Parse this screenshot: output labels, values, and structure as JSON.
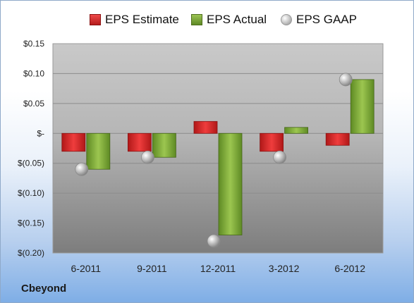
{
  "chart_data": {
    "type": "bar",
    "categories": [
      "6-2011",
      "9-2011",
      "12-2011",
      "3-2012",
      "6-2012"
    ],
    "series": [
      {
        "name": "EPS Estimate",
        "type": "bar",
        "color": "#d42a2a",
        "values": [
          -0.03,
          -0.03,
          0.02,
          -0.03,
          -0.02
        ]
      },
      {
        "name": "EPS Actual",
        "type": "bar",
        "color": "#7ea23a",
        "values": [
          -0.06,
          -0.04,
          -0.17,
          0.01,
          0.09
        ]
      },
      {
        "name": "EPS GAAP",
        "type": "scatter",
        "color": "#b9b9b9",
        "values": [
          -0.06,
          -0.04,
          -0.18,
          -0.04,
          0.09
        ]
      }
    ],
    "yticks": [
      "$0.15",
      "$0.10",
      "$0.05",
      "$-",
      "$(0.05)",
      "$(0.10)",
      "$(0.15)",
      "$(0.20)"
    ],
    "ylim": [
      -0.2,
      0.15
    ],
    "grid": true,
    "legend": "top"
  },
  "company": "Cbeyond"
}
